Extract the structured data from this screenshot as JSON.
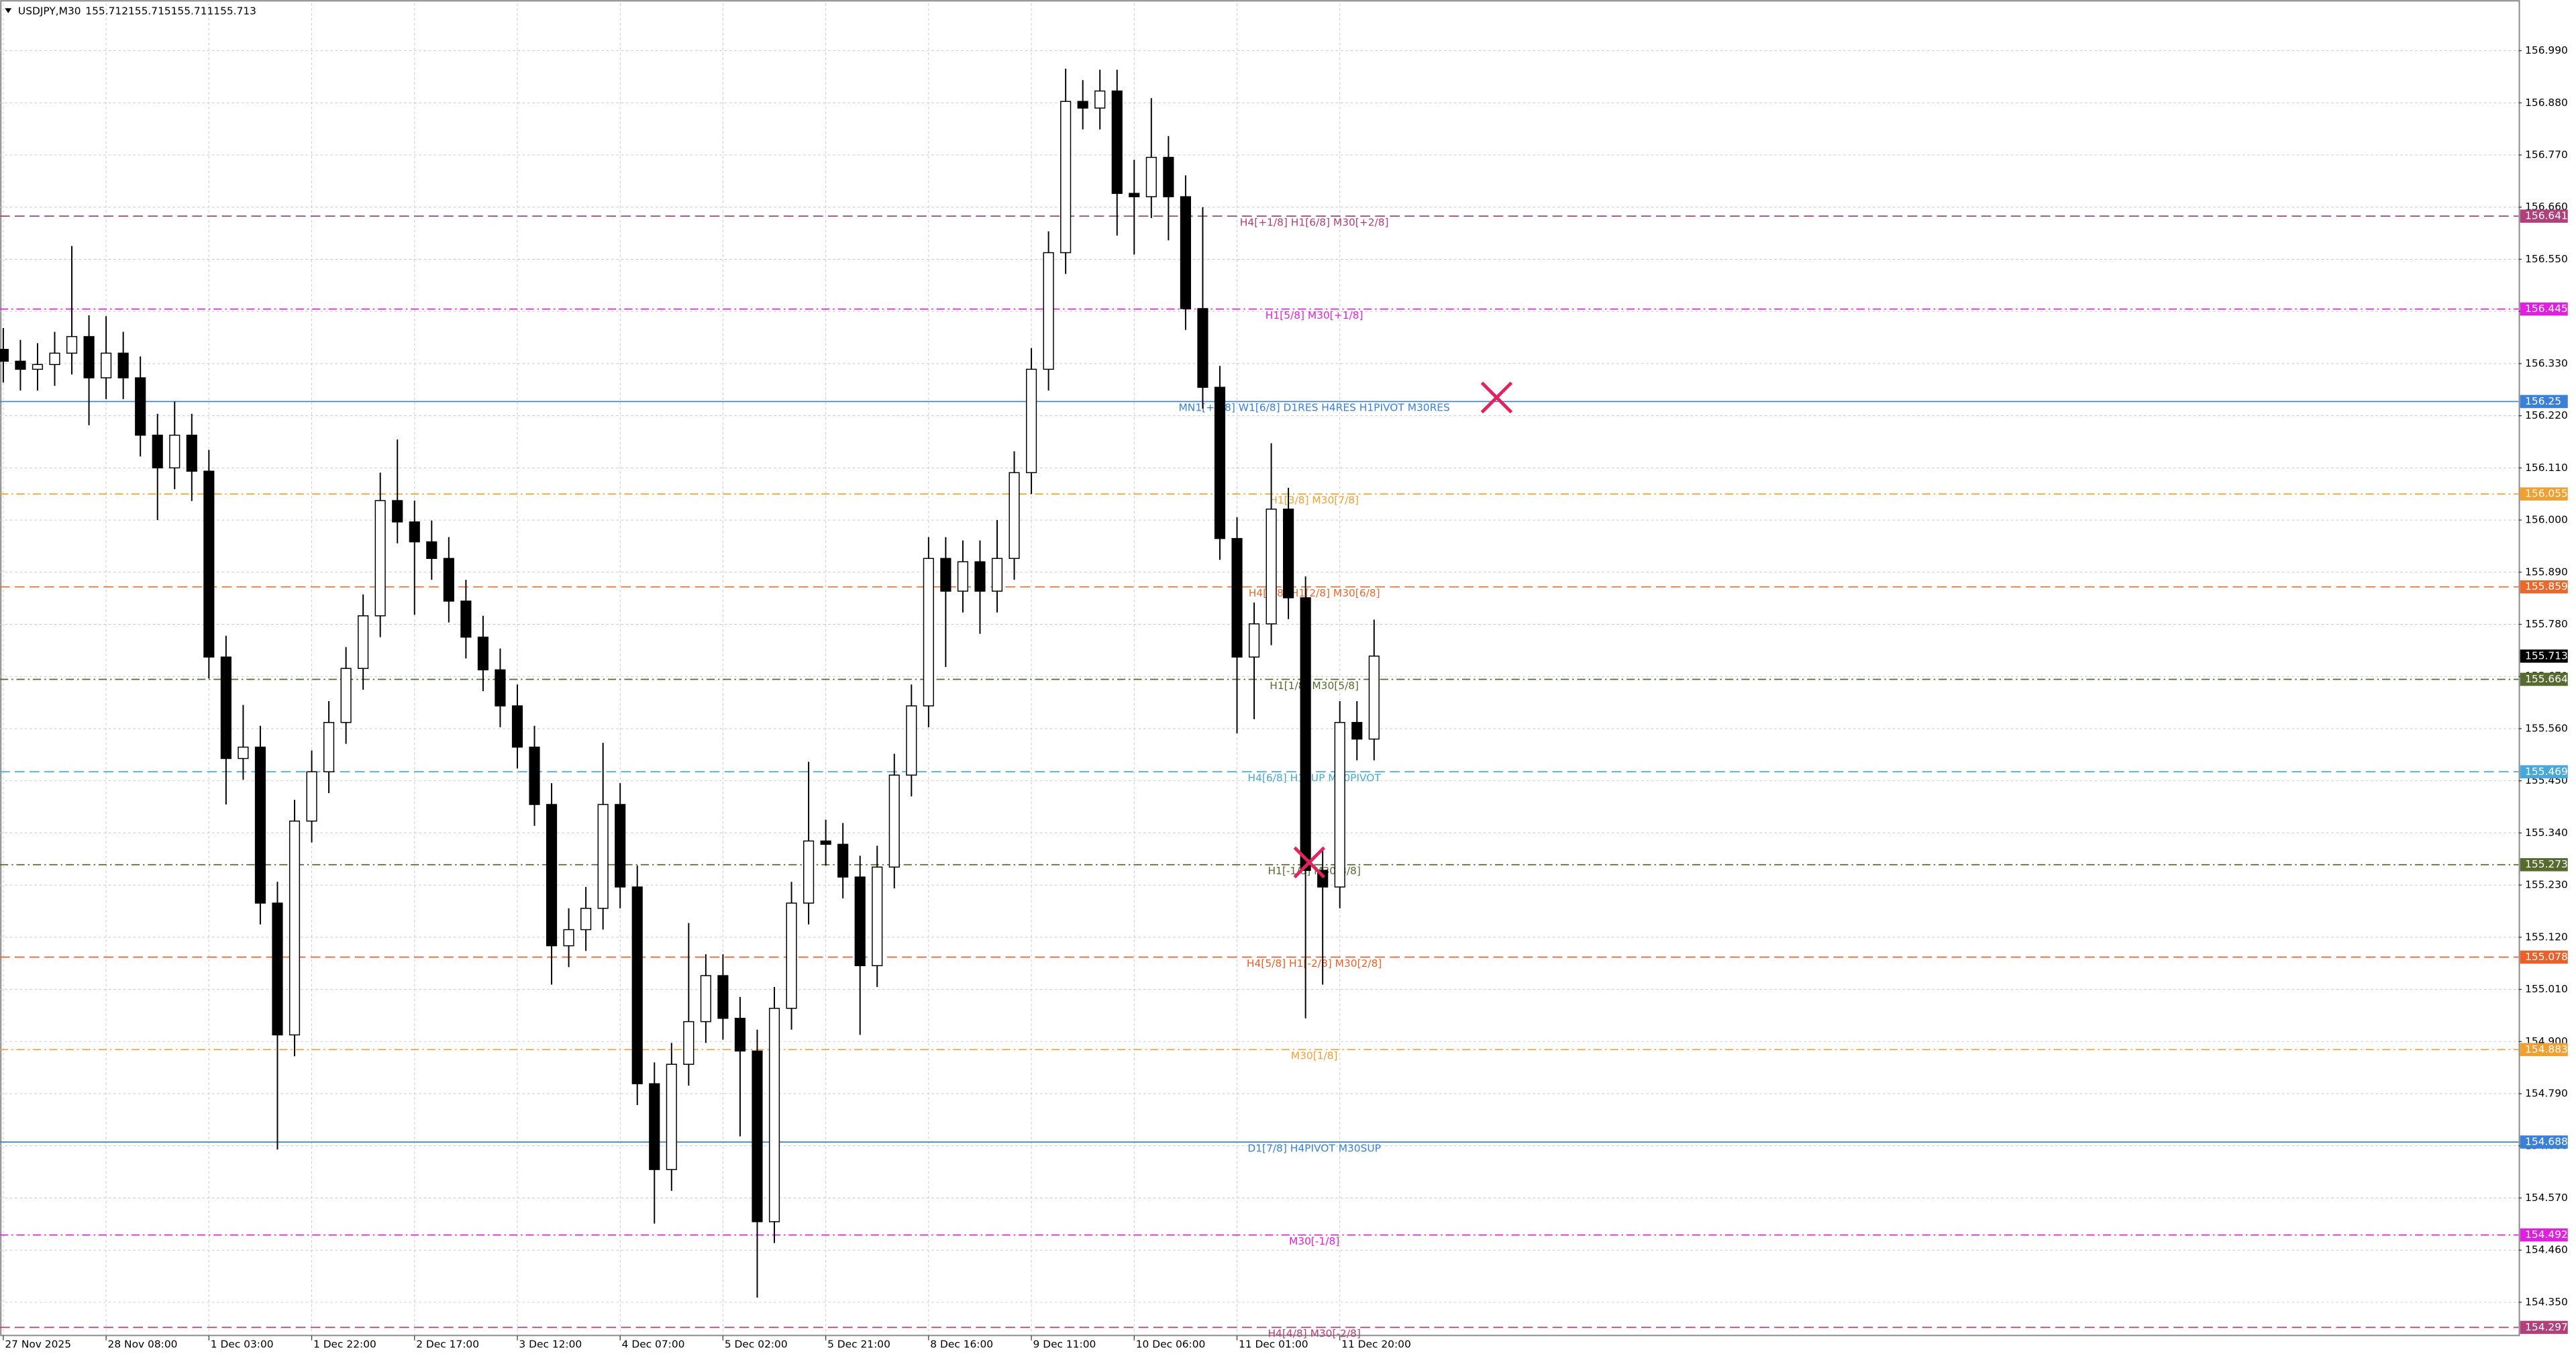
{
  "chart_data": {
    "type": "candlestick",
    "symbol": "USDJPY,M30",
    "quote": [
      155.712,
      155.715,
      155.711,
      155.713
    ],
    "categories": [
      "27 Nov 2025",
      null,
      null,
      null,
      null,
      null,
      "28 Nov 08:00",
      null,
      null,
      null,
      null,
      null,
      "1 Dec 03:00",
      null,
      null,
      null,
      null,
      null,
      "1 Dec 22:00",
      null,
      null,
      null,
      null,
      null,
      "2 Dec 17:00",
      null,
      null,
      null,
      null,
      null,
      "3 Dec 12:00",
      null,
      null,
      null,
      null,
      null,
      "4 Dec 07:00",
      null,
      null,
      null,
      null,
      null,
      "5 Dec 02:00",
      null,
      null,
      null,
      null,
      null,
      "5 Dec 21:00",
      null,
      null,
      null,
      null,
      null,
      "8 Dec 16:00",
      null,
      null,
      null,
      null,
      null,
      "9 Dec 11:00",
      null,
      null,
      null,
      null,
      null,
      "10 Dec 06:00",
      null,
      null,
      null,
      null,
      null,
      "11 Dec 01:00",
      null,
      null,
      null,
      null,
      null,
      "11 Dec 20:00",
      null,
      null
    ],
    "open": [
      156.36,
      156.335,
      156.318,
      156.328,
      156.352,
      156.387,
      156.3,
      156.352,
      156.3,
      156.179,
      156.11,
      156.179,
      156.103,
      155.711,
      155.497,
      155.521,
      155.192,
      154.914,
      155.365,
      155.469,
      155.573,
      155.687,
      155.798,
      156.041,
      155.996,
      155.954,
      155.919,
      155.829,
      155.753,
      155.684,
      155.608,
      155.521,
      155.4,
      155.102,
      155.136,
      155.181,
      155.4,
      155.226,
      154.811,
      154.63,
      154.852,
      154.942,
      155.039,
      154.949,
      154.88,
      154.52,
      154.97,
      155.192,
      155.323,
      155.316,
      155.247,
      155.06,
      155.268,
      155.462,
      155.608,
      155.919,
      155.85,
      155.912,
      155.85,
      155.919,
      156.1,
      156.318,
      156.564,
      156.883,
      156.869,
      156.905,
      156.689,
      156.682,
      156.765,
      156.682,
      156.446,
      156.28,
      155.961,
      155.711,
      155.781,
      156.023,
      155.836,
      155.261,
      155.226,
      155.573,
      155.538
    ],
    "high": [
      156.405,
      156.38,
      156.373,
      156.397,
      156.578,
      156.432,
      156.43,
      156.397,
      156.345,
      156.224,
      156.25,
      156.224,
      156.148,
      155.756,
      155.61,
      155.566,
      155.237,
      155.41,
      155.514,
      155.618,
      155.732,
      155.843,
      156.1,
      156.17,
      156.041,
      155.999,
      155.964,
      155.874,
      155.798,
      155.729,
      155.653,
      155.566,
      155.445,
      155.181,
      155.226,
      155.53,
      155.445,
      155.271,
      154.856,
      154.897,
      155.15,
      155.084,
      155.084,
      154.994,
      154.925,
      155.015,
      155.237,
      155.49,
      155.368,
      155.361,
      155.292,
      155.313,
      155.507,
      155.653,
      155.964,
      155.964,
      155.957,
      155.957,
      156.0,
      156.145,
      156.363,
      156.609,
      156.952,
      156.928,
      156.95,
      156.95,
      156.76,
      156.89,
      156.81,
      156.727,
      156.66,
      156.325,
      156.006,
      155.826,
      156.162,
      156.068,
      155.881,
      155.306,
      155.618,
      155.618,
      155.79
    ],
    "low": [
      156.29,
      156.273,
      156.273,
      156.283,
      156.307,
      156.2,
      156.255,
      156.255,
      156.134,
      156.0,
      156.065,
      156.04,
      155.666,
      155.4,
      155.452,
      155.147,
      154.672,
      154.869,
      155.32,
      155.424,
      155.528,
      155.642,
      155.753,
      155.951,
      155.8,
      155.874,
      155.784,
      155.708,
      155.639,
      155.563,
      155.476,
      155.355,
      155.02,
      155.057,
      155.091,
      155.136,
      155.181,
      154.766,
      154.516,
      154.585,
      154.807,
      154.897,
      154.904,
      154.7,
      154.36,
      154.475,
      154.925,
      155.147,
      155.271,
      155.202,
      154.914,
      155.015,
      155.223,
      155.417,
      155.563,
      155.69,
      155.805,
      155.76,
      155.805,
      155.874,
      156.055,
      156.273,
      156.519,
      156.824,
      156.824,
      156.6,
      156.56,
      156.637,
      156.59,
      156.401,
      156.235,
      155.916,
      155.55,
      155.58,
      155.736,
      155.791,
      154.949,
      155.02,
      155.181,
      155.493,
      155.493
    ],
    "close": [
      156.335,
      156.318,
      156.328,
      156.352,
      156.387,
      156.3,
      156.352,
      156.3,
      156.179,
      156.11,
      156.179,
      156.103,
      155.711,
      155.497,
      155.521,
      155.192,
      154.914,
      155.365,
      155.469,
      155.573,
      155.687,
      155.798,
      156.041,
      155.996,
      155.954,
      155.919,
      155.829,
      155.753,
      155.684,
      155.608,
      155.521,
      155.4,
      155.102,
      155.136,
      155.181,
      155.4,
      155.226,
      154.811,
      154.63,
      154.852,
      154.942,
      155.039,
      154.949,
      154.88,
      154.52,
      154.97,
      155.192,
      155.323,
      155.316,
      155.247,
      155.06,
      155.268,
      155.462,
      155.608,
      155.919,
      155.85,
      155.912,
      155.85,
      155.919,
      156.1,
      156.318,
      156.564,
      156.883,
      156.869,
      156.905,
      156.689,
      156.682,
      156.765,
      156.682,
      156.446,
      156.28,
      155.961,
      155.711,
      155.781,
      156.023,
      155.836,
      155.261,
      155.226,
      155.573,
      155.538,
      155.713
    ],
    "ylim": [
      154.28,
      157.09
    ],
    "yticks": [
      {
        "value": 154.35,
        "label": "154.350"
      },
      {
        "value": 154.46,
        "label": "154.460"
      },
      {
        "value": 154.57,
        "label": "154.570"
      },
      {
        "value": 154.68,
        "label": "154.680"
      },
      {
        "value": 154.79,
        "label": "154.790"
      },
      {
        "value": 154.9,
        "label": "154.900"
      },
      {
        "value": 155.01,
        "label": "155.010"
      },
      {
        "value": 155.12,
        "label": "155.120"
      },
      {
        "value": 155.23,
        "label": "155.230"
      },
      {
        "value": 155.34,
        "label": "155.340"
      },
      {
        "value": 155.45,
        "label": "155.450"
      },
      {
        "value": 155.56,
        "label": "155.560"
      },
      {
        "value": 155.67,
        "label": "155.670"
      },
      {
        "value": 155.78,
        "label": "155.780"
      },
      {
        "value": 155.89,
        "label": "155.890"
      },
      {
        "value": 156.0,
        "label": "156.000"
      },
      {
        "value": 156.11,
        "label": "156.110"
      },
      {
        "value": 156.22,
        "label": "156.220"
      },
      {
        "value": 156.33,
        "label": "156.330"
      },
      {
        "value": 156.44,
        "label": "156.440"
      },
      {
        "value": 156.55,
        "label": "156.550"
      },
      {
        "value": 156.66,
        "label": "156.660"
      },
      {
        "value": 156.77,
        "label": "156.770"
      },
      {
        "value": 156.88,
        "label": "156.880"
      },
      {
        "value": 156.99,
        "label": "156.990"
      }
    ],
    "grid": true,
    "bull_color": "#ffffff",
    "bear_color": "#000000",
    "levels": [
      {
        "value": 156.641,
        "label": "H4[+1/8] H1[6/8] M30[+2/8]",
        "color": "#b0407a",
        "style": "dash"
      },
      {
        "value": 156.445,
        "label": "H1[5/8] M30[+1/8]",
        "color": "#e020e0",
        "style": "dashdot"
      },
      {
        "value": 156.25,
        "label": "MN1[+1/8] W1[6/8] D1RES H4RES H1PIVOT M30RES",
        "color": "#3a80d8",
        "style": "solid"
      },
      {
        "value": 156.055,
        "label": "H1[3/8] M30[7/8]",
        "color": "#f0a030",
        "style": "dashdot"
      },
      {
        "value": 155.859,
        "label": "H4[7/8] H1[2/8] M30[6/8]",
        "color": "#e8682e",
        "style": "dash"
      },
      {
        "value": 155.664,
        "label": "H1[1/8] M30[5/8]",
        "color": "#556b2f",
        "style": "dashdot"
      },
      {
        "value": 155.469,
        "label": "H4[6/8] H1SUP M30PIVOT",
        "color": "#48a8dc",
        "style": "dash"
      },
      {
        "value": 155.273,
        "label": "H1[-1/8] M30[3/8]",
        "color": "#556b2f",
        "style": "dashdot"
      },
      {
        "value": 155.078,
        "label": "H4[5/8] H1[-2/8] M30[2/8]",
        "color": "#e8602a",
        "style": "dash"
      },
      {
        "value": 154.883,
        "label": "M30[1/8]",
        "color": "#f0a030",
        "style": "dashdot"
      },
      {
        "value": 154.688,
        "label": "D1[7/8] H4PIVOT M30SUP",
        "color": "#3a80d8",
        "style": "solid"
      },
      {
        "value": 154.492,
        "label": "M30[-1/8]",
        "color": "#e020e0",
        "style": "dashdot"
      },
      {
        "value": 154.297,
        "label": "H4[4/8] M30[-2/8]",
        "color": "#b0407a",
        "style": "dash"
      }
    ],
    "current_price": 155.713
  }
}
